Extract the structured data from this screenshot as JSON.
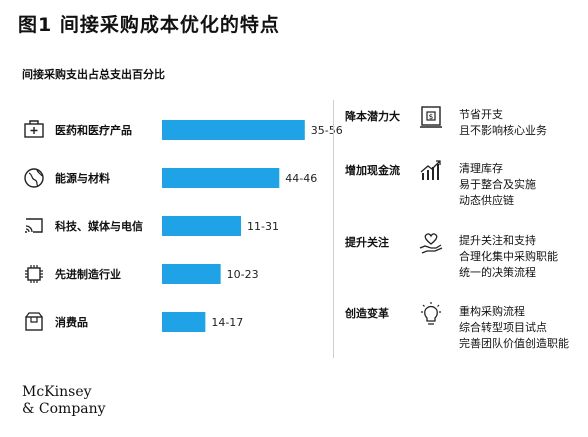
{
  "title": "图1 间接采购成本优化的特点",
  "subtitle": "间接采购支出占总支出百分比",
  "chart_data": {
    "type": "bar",
    "orientation": "horizontal",
    "categories": [
      "医药和医疗产品",
      "能源与材料",
      "科技、媒体与电信",
      "先进制造行业",
      "消费品"
    ],
    "ranges": [
      [
        35,
        56
      ],
      [
        44,
        46
      ],
      [
        11,
        31
      ],
      [
        10,
        23
      ],
      [
        14,
        17
      ]
    ],
    "labels": [
      "35-56",
      "44-46",
      "11-31",
      "10-23",
      "14-17"
    ],
    "category_icons": [
      "medical-kit-icon",
      "globe-icon",
      "wifi-screen-icon",
      "chip-icon",
      "shopping-box-icon"
    ],
    "bar_color": "#1fa3e6"
  },
  "benefits": [
    {
      "label": "降本潜力大",
      "icon": "wallet-icon",
      "lines": [
        "节省开支",
        "且不影响核心业务"
      ]
    },
    {
      "label": "增加现金流",
      "icon": "growth-chart-icon",
      "lines": [
        "清理库存",
        "易于整合及实施",
        "动态供应链"
      ]
    },
    {
      "label": "提升关注",
      "icon": "heart-hand-icon",
      "lines": [
        "提升关注和支持",
        "合理化集中采购职能",
        "统一的决策流程"
      ]
    },
    {
      "label": "创造变革",
      "icon": "lightbulb-icon",
      "lines": [
        "重构采购流程",
        "综合转型项目试点",
        "完善团队价值创造职能"
      ]
    }
  ],
  "logo": [
    "McKinsey",
    "& Company"
  ]
}
